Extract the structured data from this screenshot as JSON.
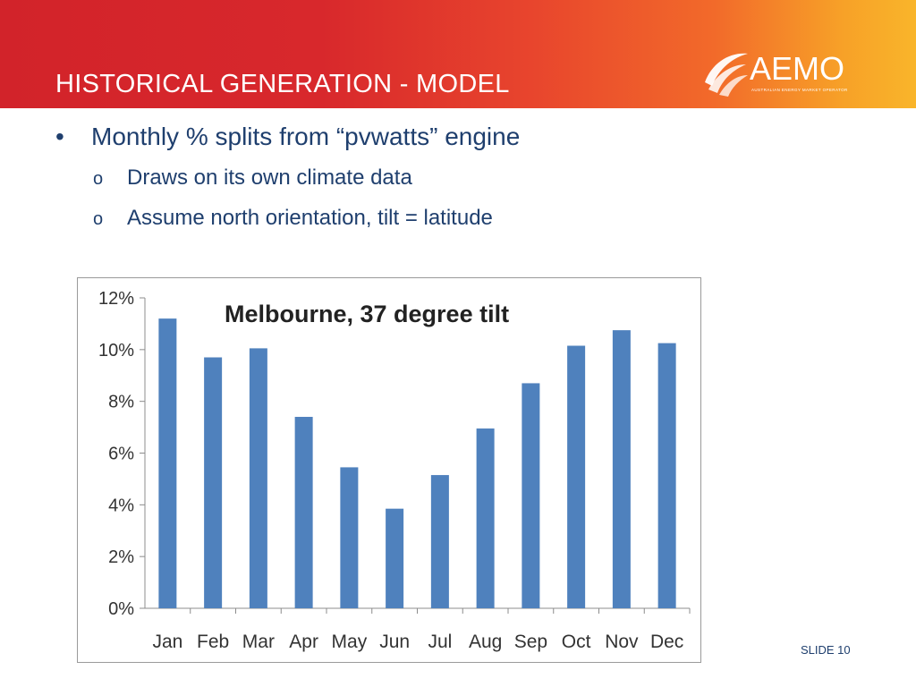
{
  "slide": {
    "title": "HISTORICAL GENERATION - MODEL",
    "slide_number": "SLIDE 10"
  },
  "logo": {
    "name": "AEMO",
    "subtitle": "AUSTRALIAN ENERGY MARKET OPERATOR",
    "icon": "aemo-swoosh-icon"
  },
  "bullets": {
    "main": {
      "marker": "•",
      "text": "Monthly % splits from “pvwatts” engine"
    },
    "sub": [
      {
        "marker": "o",
        "text": "Draws on its own climate data"
      },
      {
        "marker": "o",
        "text": "Assume north orientation, tilt = latitude"
      }
    ]
  },
  "colors": {
    "header_red": "#d2232a",
    "header_orange": "#f9b52a",
    "text_navy": "#1f3f6e",
    "bar_blue": "#4f81bd"
  },
  "chart_data": {
    "type": "bar",
    "title": "Melbourne, 37 degree tilt",
    "xlabel": "",
    "ylabel": "",
    "categories": [
      "Jan",
      "Feb",
      "Mar",
      "Apr",
      "May",
      "Jun",
      "Jul",
      "Aug",
      "Sep",
      "Oct",
      "Nov",
      "Dec"
    ],
    "values": [
      11.2,
      9.7,
      10.05,
      7.4,
      5.45,
      3.85,
      5.15,
      6.95,
      8.7,
      10.15,
      10.75,
      10.25
    ],
    "unit": "%",
    "ylim": [
      0,
      12
    ],
    "yticks": [
      "0%",
      "2%",
      "4%",
      "6%",
      "8%",
      "10%",
      "12%"
    ],
    "grid": false,
    "legend": "none"
  }
}
